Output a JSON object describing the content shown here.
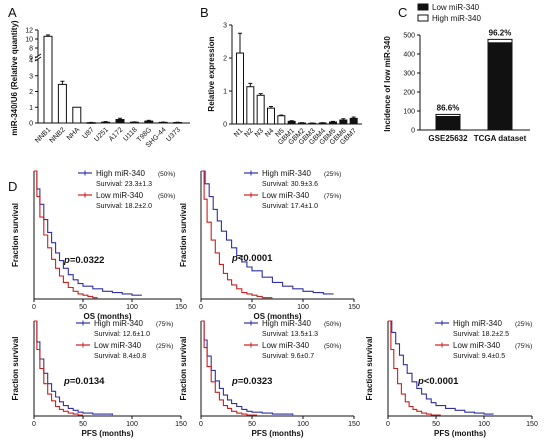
{
  "chart_data": [
    {
      "panel": "A",
      "type": "bar",
      "ylabel": "miR-340/U6 (Relative quantity)",
      "y_ticks": [
        "0",
        "1",
        "2",
        "3",
        "4",
        "6",
        "8",
        "10",
        "12"
      ],
      "categories": [
        "NNB1",
        "NNB2",
        "NHA",
        "U87",
        "U251",
        "A172",
        "U118",
        "T98G",
        "SHG-44",
        "U373"
      ],
      "values": [
        10.6,
        2.45,
        1.0,
        0.02,
        0.05,
        0.22,
        0.05,
        0.12,
        0.04,
        0.03
      ],
      "errors": [
        0.3,
        0.2,
        0.0,
        0.02,
        0.04,
        0.08,
        0.02,
        0.05,
        0.02,
        0.02
      ],
      "fills": [
        "#ffffff",
        "#ffffff",
        "#ffffff",
        "#111111",
        "#111111",
        "#111111",
        "#111111",
        "#111111",
        "#111111",
        "#111111"
      ]
    },
    {
      "panel": "B",
      "type": "bar",
      "ylabel": "Relative expression",
      "y_ticks": [
        "0",
        "1",
        "2",
        "3"
      ],
      "ylim": [
        0,
        3
      ],
      "categories": [
        "N1",
        "N2",
        "N3",
        "N4",
        "N5",
        "GBM1",
        "GBM2",
        "GBM3",
        "GBM4",
        "GBM5",
        "GBM6",
        "GBM7"
      ],
      "values": [
        2.15,
        1.13,
        0.87,
        0.48,
        0.25,
        0.08,
        0.03,
        0.02,
        0.03,
        0.06,
        0.12,
        0.17
      ],
      "errors": [
        0.6,
        0.1,
        0.05,
        0.05,
        0.02,
        0.02,
        0.01,
        0.01,
        0.01,
        0.02,
        0.04,
        0.04
      ],
      "fills": [
        "#ffffff",
        "#ffffff",
        "#ffffff",
        "#ffffff",
        "#ffffff",
        "#111111",
        "#111111",
        "#111111",
        "#111111",
        "#111111",
        "#111111",
        "#111111"
      ]
    },
    {
      "panel": "C",
      "type": "bar",
      "ylabel": "Incidence of low miR-340",
      "y_ticks": [
        "0",
        "100",
        "200",
        "300",
        "400",
        "500"
      ],
      "ylim": [
        0,
        500
      ],
      "legend": [
        "Low miR-340",
        "High miR-340"
      ],
      "categories": [
        "GSE25632",
        "TCGA dataset"
      ],
      "series": [
        {
          "name": "Low miR-340",
          "values": [
            71,
            459
          ]
        },
        {
          "name": "High miR-340",
          "values": [
            11,
            18
          ]
        }
      ],
      "percent_labels": [
        "86.6%",
        "96.2%"
      ]
    },
    {
      "panel": "D1",
      "type": "line",
      "ylabel": "Fraction survival",
      "xlabel": "OS (months)",
      "x_ticks": [
        "0",
        "50",
        "100",
        "150"
      ],
      "xlim": [
        0,
        150
      ],
      "series": [
        {
          "name": "High miR-340",
          "pct": "(50%)",
          "survival": "Survival: 23.3±1.3",
          "color": "#3030a0",
          "x": [
            0,
            3,
            6,
            10,
            14,
            18,
            22,
            26,
            30,
            35,
            40,
            45,
            50,
            60,
            70,
            80,
            90,
            100,
            110
          ],
          "y": [
            1,
            0.86,
            0.74,
            0.62,
            0.52,
            0.44,
            0.36,
            0.3,
            0.24,
            0.19,
            0.15,
            0.12,
            0.1,
            0.08,
            0.06,
            0.05,
            0.04,
            0.03,
            0.03
          ]
        },
        {
          "name": "Low miR-340",
          "pct": "(50%)",
          "survival": "Survival: 18.2±2.0",
          "color": "#cc2020",
          "x": [
            0,
            3,
            6,
            10,
            14,
            18,
            22,
            26,
            30,
            35,
            40,
            45,
            50,
            55,
            60,
            65
          ],
          "y": [
            1,
            0.8,
            0.64,
            0.5,
            0.4,
            0.31,
            0.24,
            0.18,
            0.13,
            0.09,
            0.06,
            0.04,
            0.03,
            0.02,
            0.01,
            0.01
          ]
        }
      ],
      "p_value": "p=0.0322"
    },
    {
      "panel": "D2",
      "type": "line",
      "ylabel": "Fraction survival",
      "xlabel": "OS (months)",
      "x_ticks": [
        "0",
        "50",
        "100",
        "150"
      ],
      "xlim": [
        0,
        150
      ],
      "series": [
        {
          "name": "High miR-340",
          "pct": "(25%)",
          "survival": "Survival: 30.9±3.6",
          "color": "#3030a0",
          "x": [
            0,
            4,
            8,
            12,
            16,
            20,
            25,
            30,
            35,
            40,
            45,
            50,
            60,
            70,
            80,
            90,
            100,
            110,
            120,
            130
          ],
          "y": [
            1,
            0.9,
            0.8,
            0.7,
            0.61,
            0.53,
            0.46,
            0.4,
            0.34,
            0.29,
            0.25,
            0.22,
            0.17,
            0.13,
            0.1,
            0.08,
            0.06,
            0.05,
            0.04,
            0.04
          ]
        },
        {
          "name": "Low miR-340",
          "pct": "(75%)",
          "survival": "Survival: 17.4±1.0",
          "color": "#cc2020",
          "x": [
            0,
            3,
            6,
            10,
            14,
            18,
            22,
            26,
            30,
            35,
            40,
            45,
            50,
            55,
            60,
            70
          ],
          "y": [
            1,
            0.78,
            0.6,
            0.46,
            0.36,
            0.27,
            0.2,
            0.15,
            0.11,
            0.08,
            0.05,
            0.04,
            0.03,
            0.02,
            0.01,
            0.01
          ]
        }
      ],
      "p_value": "p<0.0001"
    },
    {
      "panel": "D3",
      "type": "line",
      "ylabel": "Fraction survival",
      "xlabel": "PFS (months)",
      "x_ticks": [
        "0",
        "50",
        "100",
        "150"
      ],
      "xlim": [
        0,
        150
      ],
      "series": [
        {
          "name": "High miR-340",
          "pct": "(75%)",
          "survival": "Survival: 12.6±1.0",
          "color": "#3030a0",
          "x": [
            0,
            3,
            6,
            10,
            14,
            18,
            22,
            26,
            30,
            35,
            40,
            45,
            50,
            60,
            70,
            80
          ],
          "y": [
            1,
            0.78,
            0.6,
            0.45,
            0.34,
            0.26,
            0.2,
            0.15,
            0.11,
            0.08,
            0.06,
            0.04,
            0.03,
            0.02,
            0.02,
            0.01
          ]
        },
        {
          "name": "Low miR-340",
          "pct": "(25%)",
          "survival": "Survival: 8.4±0.8",
          "color": "#cc2020",
          "x": [
            0,
            3,
            6,
            10,
            14,
            18,
            22,
            26,
            30,
            35,
            40,
            45,
            50
          ],
          "y": [
            1,
            0.7,
            0.5,
            0.34,
            0.23,
            0.16,
            0.1,
            0.07,
            0.05,
            0.03,
            0.02,
            0.01,
            0.01
          ]
        }
      ],
      "p_value": "p=0.0134"
    },
    {
      "panel": "D4",
      "type": "line",
      "ylabel": "Fraction survival",
      "xlabel": "PFS (months)",
      "x_ticks": [
        "0",
        "50",
        "100",
        "150"
      ],
      "xlim": [
        0,
        150
      ],
      "series": [
        {
          "name": "High miR-340",
          "pct": "(50%)",
          "survival": "Survival: 13.5±1.3",
          "color": "#3030a0",
          "x": [
            0,
            3,
            6,
            10,
            14,
            18,
            22,
            26,
            30,
            35,
            40,
            45,
            50,
            60,
            70,
            80,
            90
          ],
          "y": [
            1,
            0.8,
            0.63,
            0.48,
            0.37,
            0.29,
            0.22,
            0.17,
            0.13,
            0.1,
            0.07,
            0.05,
            0.04,
            0.03,
            0.02,
            0.02,
            0.01
          ]
        },
        {
          "name": "Low miR-340",
          "pct": "(50%)",
          "survival": "Survival: 9.6±0.7",
          "color": "#cc2020",
          "x": [
            0,
            3,
            6,
            10,
            14,
            18,
            22,
            26,
            30,
            35,
            40,
            45,
            50,
            55
          ],
          "y": [
            1,
            0.72,
            0.52,
            0.36,
            0.25,
            0.17,
            0.11,
            0.08,
            0.05,
            0.03,
            0.02,
            0.01,
            0.01,
            0.01
          ]
        }
      ],
      "p_value": "p=0.0323"
    },
    {
      "panel": "D5",
      "type": "line",
      "ylabel": "Fraction survival",
      "xlabel": "PFS (months)",
      "x_ticks": [
        "0",
        "50",
        "100",
        "150"
      ],
      "xlim": [
        0,
        150
      ],
      "series": [
        {
          "name": "High miR-340",
          "pct": "(25%)",
          "survival": "Survival: 18.2±2.5",
          "color": "#3030a0",
          "x": [
            0,
            4,
            8,
            12,
            16,
            20,
            25,
            30,
            35,
            40,
            45,
            50,
            60,
            70,
            80,
            90,
            100,
            110
          ],
          "y": [
            1,
            0.88,
            0.76,
            0.64,
            0.54,
            0.45,
            0.36,
            0.29,
            0.23,
            0.18,
            0.14,
            0.11,
            0.08,
            0.06,
            0.04,
            0.03,
            0.02,
            0.02
          ]
        },
        {
          "name": "Low miR-340",
          "pct": "(75%)",
          "survival": "Survival: 9.4±0.5",
          "color": "#cc2020",
          "x": [
            0,
            3,
            6,
            10,
            14,
            18,
            22,
            26,
            30,
            35,
            40,
            45,
            50,
            55
          ],
          "y": [
            1,
            0.7,
            0.5,
            0.34,
            0.23,
            0.15,
            0.1,
            0.07,
            0.05,
            0.03,
            0.02,
            0.01,
            0.01,
            0.01
          ]
        }
      ],
      "p_value": "p<0.0001"
    }
  ]
}
